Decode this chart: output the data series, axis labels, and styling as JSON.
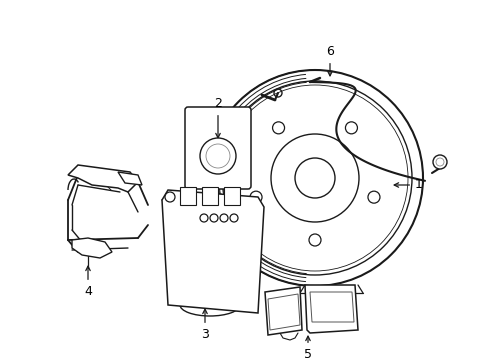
{
  "background_color": "#ffffff",
  "line_color": "#1a1a1a",
  "line_width": 1.1,
  "figsize": [
    4.89,
    3.6
  ],
  "dpi": 100,
  "xlim": [
    0,
    489
  ],
  "ylim": [
    0,
    360
  ]
}
